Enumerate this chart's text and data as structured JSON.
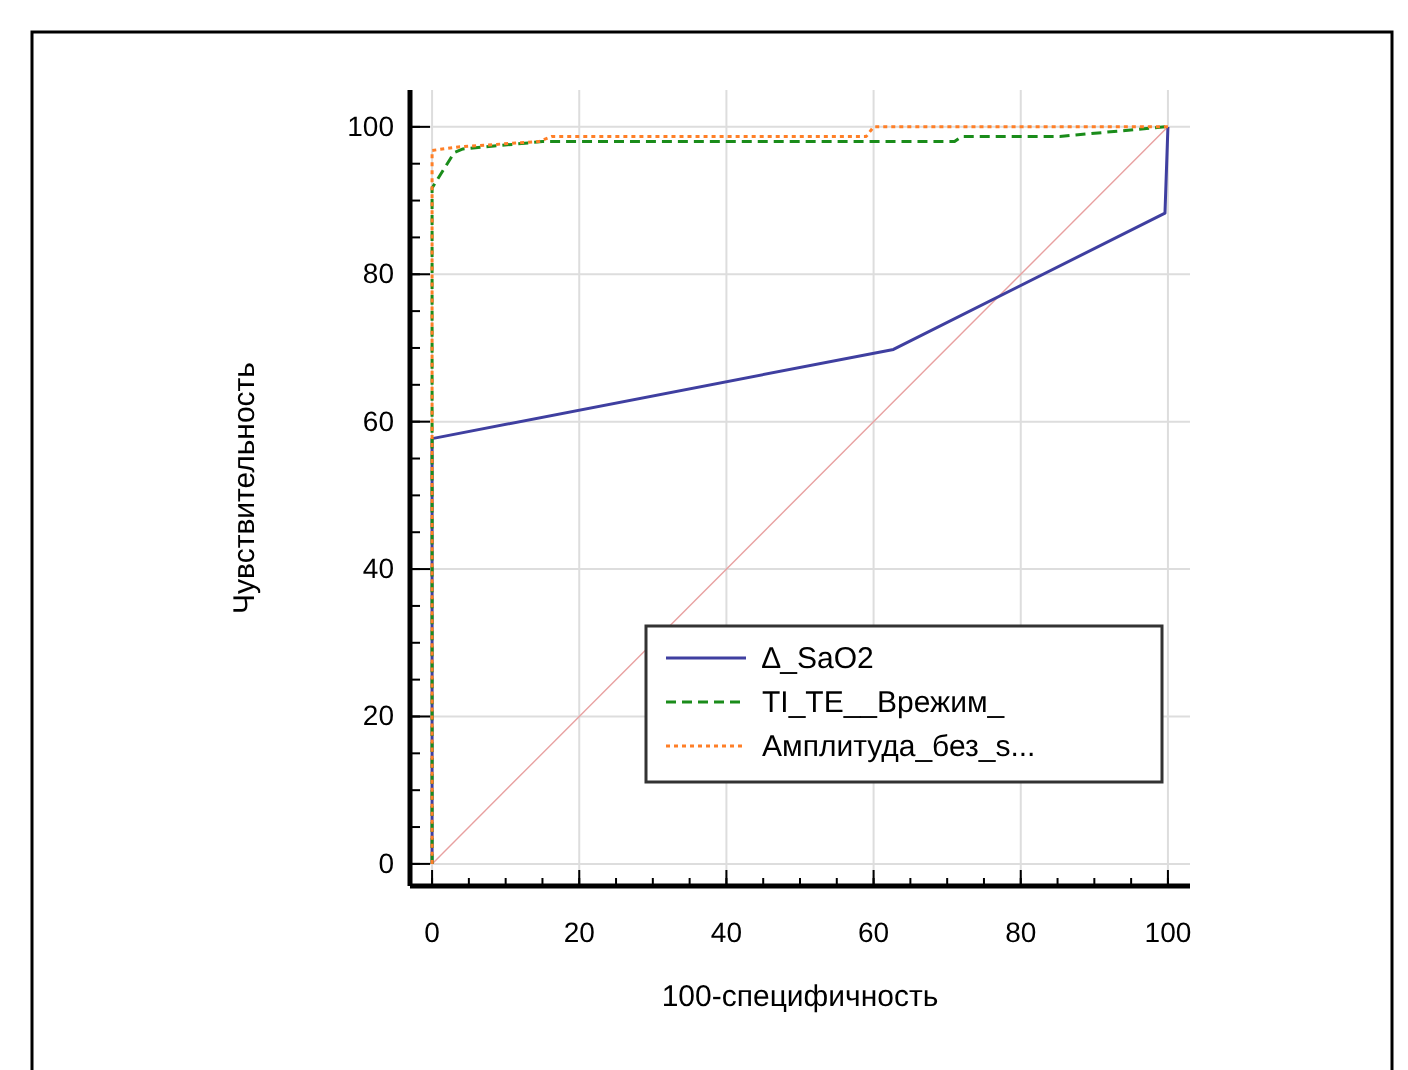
{
  "chart_data": {
    "type": "line",
    "xlabel": "100-специфичность",
    "ylabel": "Чувствительность",
    "xlim": [
      -3,
      103
    ],
    "ylim": [
      -3,
      105
    ],
    "xticks": [
      0,
      20,
      40,
      60,
      80,
      100
    ],
    "yticks": [
      0,
      20,
      40,
      60,
      80,
      100
    ],
    "grid": true,
    "legend": "bottom right",
    "marker": "none",
    "series": [
      {
        "name": "∆_SaO2",
        "color": "#3f3fa0",
        "line_style": "solid",
        "x": [
          0,
          0,
          62.7,
          99.6,
          100
        ],
        "values": [
          0,
          57.7,
          69.8,
          88.3,
          100
        ]
      },
      {
        "name": "TI_TE__Врежим_",
        "color": "#1a8c1a",
        "line_style": "dashed",
        "x": [
          0,
          0,
          3,
          4.2,
          15,
          71,
          72,
          85.3,
          99.6
        ],
        "values": [
          0,
          91.7,
          96.5,
          97,
          98,
          98,
          98.7,
          98.7,
          100
        ]
      },
      {
        "name": "Амплитуда_без_s...",
        "color": "#ff7f27",
        "line_style": "dotted",
        "x": [
          0,
          0,
          3.8,
          14.5,
          16.3,
          59,
          60,
          100
        ],
        "values": [
          0,
          96.8,
          97.3,
          98,
          98.7,
          98.7,
          100,
          100
        ]
      },
      {
        "color": "#e8a0a0",
        "line_style": "solid",
        "x": [
          0,
          100
        ],
        "values": [
          0,
          100
        ]
      }
    ]
  }
}
